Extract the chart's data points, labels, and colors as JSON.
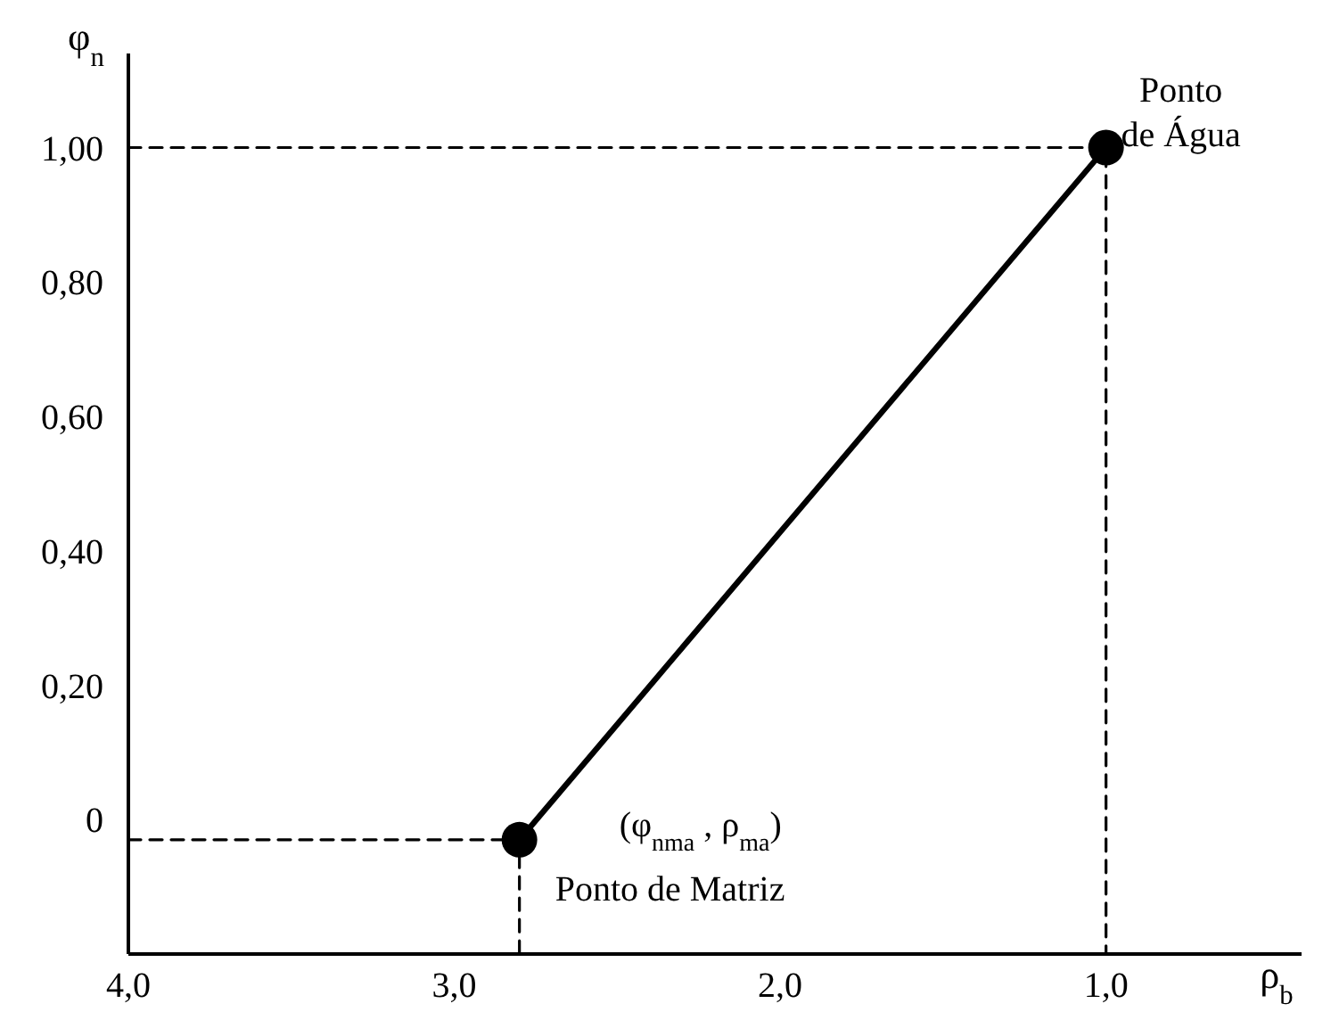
{
  "chart_data": {
    "type": "line",
    "xlabel": "ρ$_{b}$",
    "ylabel": "φ$_{n}$",
    "xlim": [
      4.0,
      0.4
    ],
    "ylim": [
      -0.2,
      1.14
    ],
    "xticks": [
      {
        "value": 4,
        "label": "4,0"
      },
      {
        "value": 3,
        "label": "3,0"
      },
      {
        "value": 2,
        "label": "2,0"
      },
      {
        "value": 1,
        "label": "1,0"
      }
    ],
    "yticks": [
      0,
      {
        "value": 0.2,
        "label": "0,20"
      },
      {
        "value": 0.4,
        "label": "0,40"
      },
      {
        "value": 0.6,
        "label": "0,60"
      },
      {
        "value": 0.8,
        "label": "0,80"
      },
      {
        "value": 1,
        "label": "1,00"
      }
    ],
    "series": [
      {
        "color": "#000000",
        "x": [
          2.8,
          1.0
        ],
        "values": [
          -0.03,
          1.0
        ],
        "marker": "circle",
        "line_style": "solid"
      },
      {
        "color": "#000000",
        "x": [
          4.0,
          1.0,
          1.0
        ],
        "values": [
          1.0,
          1.0,
          -0.2
        ],
        "marker": "none",
        "line_style": "dashed"
      },
      {
        "color": "#000000",
        "x": [
          4.0,
          2.8,
          2.8
        ],
        "values": [
          -0.03,
          -0.03,
          -0.2
        ],
        "marker": "none",
        "line_style": "dashed"
      }
    ],
    "annotations": [
      "Ponto de Água",
      "(φ$_{nma}$ , ρ$_{ma}$)",
      "Ponto de Matriz"
    ],
    "grid": false
  }
}
